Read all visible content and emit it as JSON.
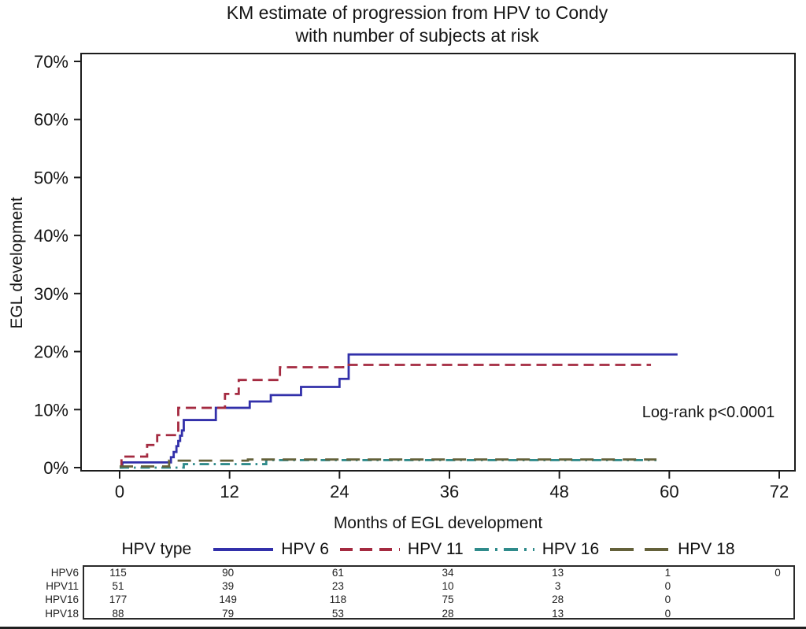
{
  "figure": {
    "title_line1": "KM estimate of progression from HPV to Condy",
    "title_line2": "with number of subjects at risk",
    "annotation": "Log-rank p<0.0001"
  },
  "axes": {
    "y_label": "EGL development",
    "x_label": "Months of EGL development"
  },
  "legend": {
    "title": "HPV type",
    "entries": [
      {
        "label": "HPV 6",
        "color": "#3230aa",
        "style": "solid"
      },
      {
        "label": "HPV 11",
        "color": "#a42a40",
        "style": "dash"
      },
      {
        "label": "HPV 16",
        "color": "#2f8b8b",
        "style": "dashdot"
      },
      {
        "label": "HPV 18",
        "color": "#64613a",
        "style": "longdash"
      }
    ]
  },
  "chart_data": {
    "type": "line",
    "subtype": "kaplan-meier-step",
    "title": "KM estimate of progression from HPV to Condy with number of subjects at risk",
    "xlabel": "Months of EGL development",
    "ylabel": "EGL development",
    "xlim": [
      0,
      72
    ],
    "ylim_percent": [
      0,
      70
    ],
    "x_ticks": [
      0,
      12,
      24,
      36,
      48,
      60,
      72
    ],
    "y_ticks_percent": [
      0,
      10,
      20,
      30,
      40,
      50,
      60,
      70
    ],
    "grid": false,
    "legend_position": "bottom",
    "annotation": "Log-rank p<0.0001",
    "series": [
      {
        "name": "HPV 6",
        "color": "#3230aa",
        "style": "solid",
        "points_month_percent": [
          [
            0,
            0
          ],
          [
            0.3,
            0.9
          ],
          [
            5.6,
            1.8
          ],
          [
            5.9,
            2.7
          ],
          [
            6.2,
            3.7
          ],
          [
            6.4,
            4.6
          ],
          [
            6.6,
            5.5
          ],
          [
            6.8,
            6.4
          ],
          [
            7.0,
            8.2
          ],
          [
            10.5,
            10.3
          ],
          [
            14.2,
            11.4
          ],
          [
            16.5,
            12.5
          ],
          [
            19.8,
            13.9
          ],
          [
            24.0,
            15.3
          ],
          [
            25.0,
            19.5
          ],
          [
            60.9,
            19.5
          ]
        ]
      },
      {
        "name": "HPV 11",
        "color": "#a42a40",
        "style": "dash",
        "points_month_percent": [
          [
            0,
            0
          ],
          [
            0.2,
            1.9
          ],
          [
            3.0,
            3.9
          ],
          [
            4.1,
            5.6
          ],
          [
            6.4,
            10.3
          ],
          [
            11.5,
            12.7
          ],
          [
            13.0,
            15.1
          ],
          [
            17.5,
            17.3
          ],
          [
            24.4,
            17.7
          ],
          [
            58.0,
            17.7
          ]
        ]
      },
      {
        "name": "HPV 16",
        "color": "#2f8b8b",
        "style": "dashdot",
        "points_month_percent": [
          [
            0,
            0
          ],
          [
            7.0,
            0.6
          ],
          [
            16.0,
            1.3
          ],
          [
            58.6,
            1.3
          ]
        ]
      },
      {
        "name": "HPV 18",
        "color": "#64613a",
        "style": "longdash",
        "points_month_percent": [
          [
            0,
            0.2
          ],
          [
            5.4,
            1.2
          ],
          [
            14.0,
            1.4
          ],
          [
            58.6,
            1.4
          ]
        ]
      }
    ]
  },
  "risk_table": {
    "rows": [
      {
        "label": "HPV6",
        "values": [
          "115",
          "90",
          "61",
          "34",
          "13",
          "1",
          "0"
        ]
      },
      {
        "label": "HPV11",
        "values": [
          "51",
          "39",
          "23",
          "10",
          "3",
          "0"
        ]
      },
      {
        "label": "HPV16",
        "values": [
          "177",
          "149",
          "118",
          "75",
          "28",
          "0"
        ]
      },
      {
        "label": "HPV18",
        "values": [
          "88",
          "79",
          "53",
          "28",
          "13",
          "0"
        ]
      }
    ]
  }
}
